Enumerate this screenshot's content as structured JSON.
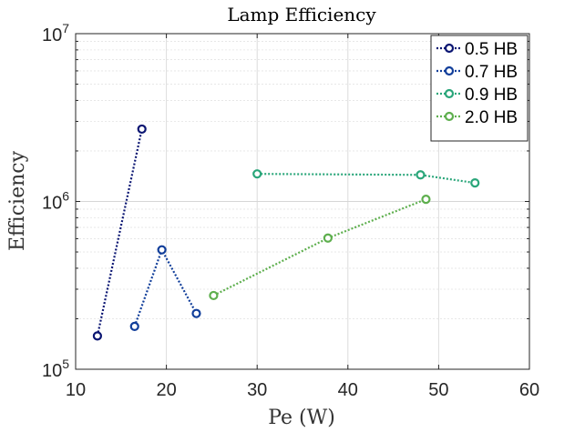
{
  "chart_data": {
    "type": "line",
    "title": "Lamp Efficiency",
    "xlabel": "Pe (W)",
    "ylabel": "Efficiency",
    "xlim": [
      10,
      60
    ],
    "ylim": [
      100000,
      10000000
    ],
    "yscale": "log",
    "xticks": [
      10,
      20,
      30,
      40,
      50,
      60
    ],
    "xtick_labels": [
      "10",
      "20",
      "30",
      "40",
      "50",
      "60"
    ],
    "ytick_labels": [
      {
        "base": "10",
        "exp": "5",
        "value": 100000
      },
      {
        "base": "10",
        "exp": "6",
        "value": 1000000
      },
      {
        "base": "10",
        "exp": "7",
        "value": 10000000
      }
    ],
    "grid": true,
    "legend_position": "top-right",
    "series": [
      {
        "name": "0.5 HB",
        "color": "#0a1572",
        "x": [
          12.4,
          17.3
        ],
        "y": [
          158000,
          2700000
        ]
      },
      {
        "name": "0.7 HB",
        "color": "#113e9a",
        "x": [
          16.5,
          19.5,
          23.3
        ],
        "y": [
          180000,
          515000,
          215000
        ]
      },
      {
        "name": "0.9 HB",
        "color": "#2aa67a",
        "x": [
          30.0,
          48.0,
          54.0
        ],
        "y": [
          1460000,
          1440000,
          1290000
        ]
      },
      {
        "name": "2.0 HB",
        "color": "#5eaf4e",
        "x": [
          25.2,
          37.8,
          48.6
        ],
        "y": [
          275000,
          605000,
          1030000
        ]
      }
    ]
  }
}
